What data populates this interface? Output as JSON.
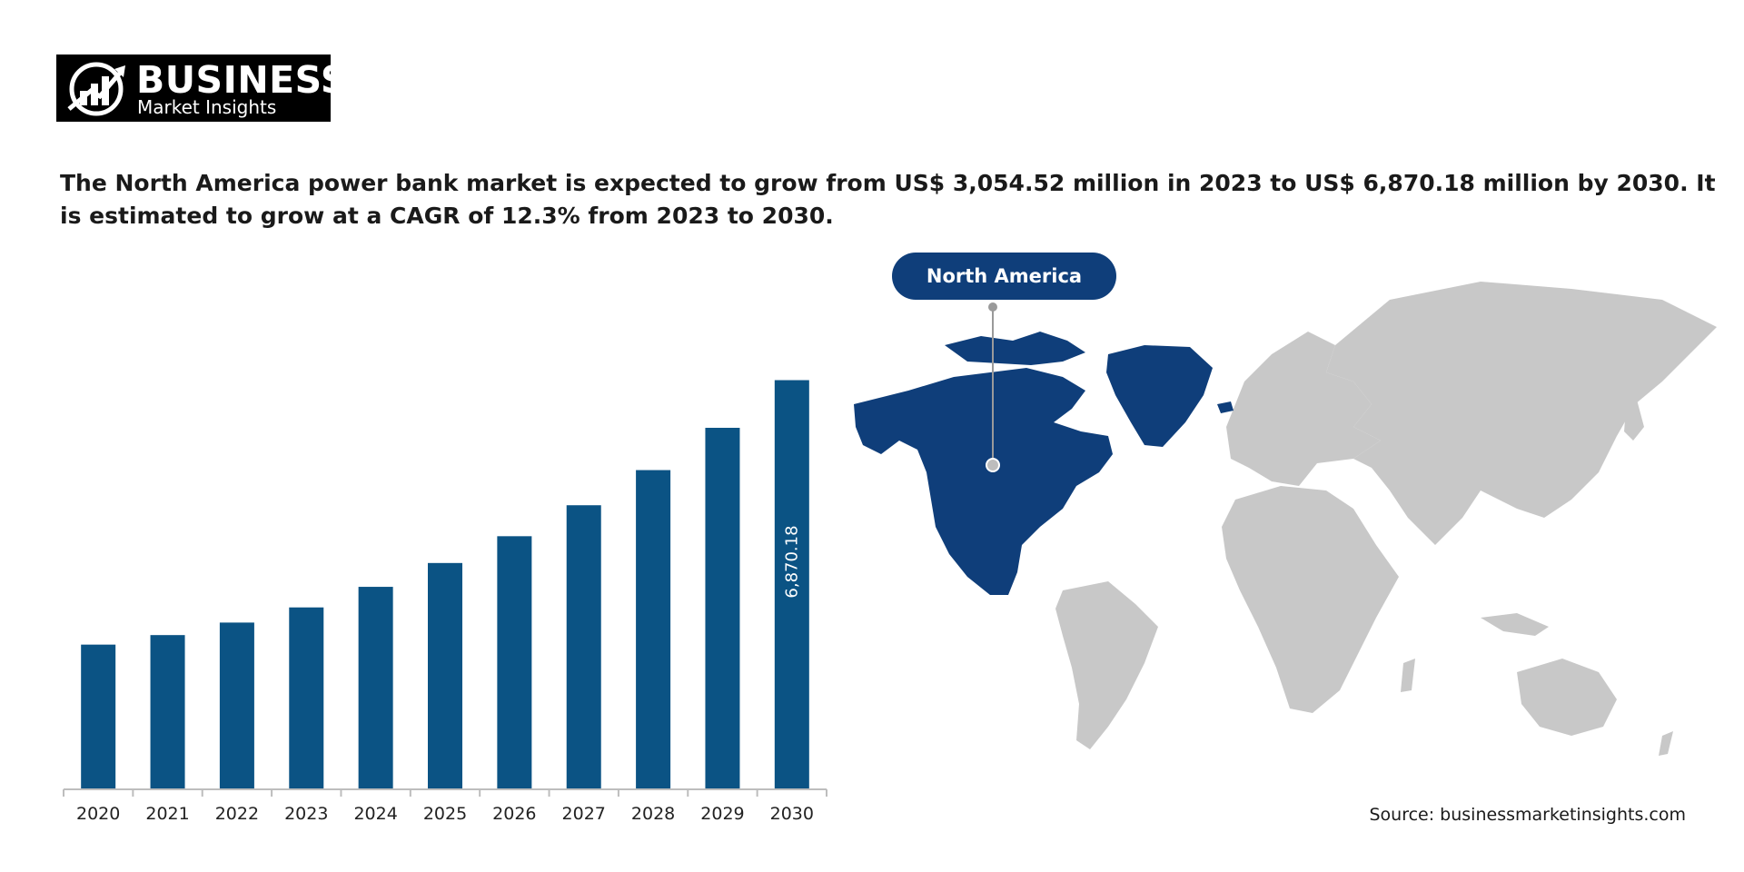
{
  "logo": {
    "word": "BUSINESS",
    "sub": "Market Insights"
  },
  "headline": "The North America power bank market is expected to grow from US$ 3,054.52 million in 2023 to US$ 6,870.18 million by 2030. It is estimated to grow at a CAGR of 12.3% from 2023 to 2030.",
  "map": {
    "region_label": "North America",
    "highlight_color": "#0f3e7a",
    "land_color": "#c8c8c8"
  },
  "source": "Source: businessmarketinsights.com",
  "chart_data": {
    "type": "bar",
    "title": "",
    "xlabel": "",
    "ylabel": "",
    "categories": [
      "2020",
      "2021",
      "2022",
      "2023",
      "2024",
      "2025",
      "2026",
      "2027",
      "2028",
      "2029",
      "2030"
    ],
    "values": [
      2430,
      2590,
      2800,
      3054.52,
      3400,
      3800,
      4250,
      4770,
      5360,
      6070,
      6870.18
    ],
    "data_labels": {
      "10": "6,870.18"
    },
    "ylim": [
      0,
      7000
    ],
    "grid": false,
    "bar_color": "#0b5384"
  }
}
